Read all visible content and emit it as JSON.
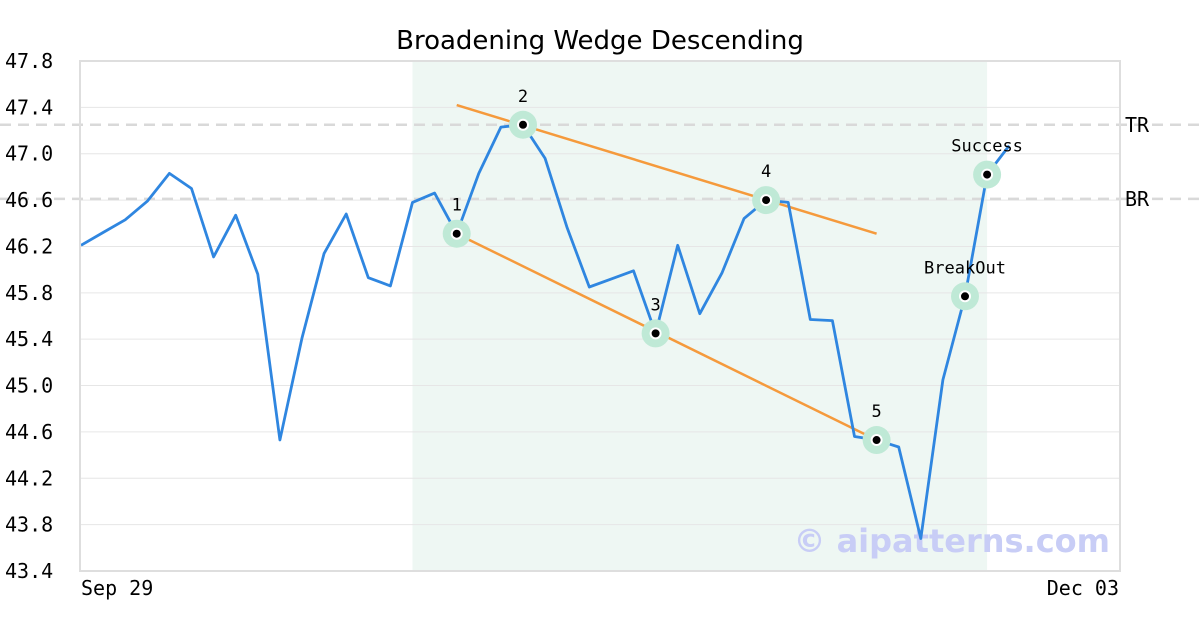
{
  "chart_data": {
    "type": "line",
    "title": "Broadening Wedge Descending",
    "ylim": [
      43.4,
      47.8
    ],
    "y_ticks": [
      "47.8",
      "47.4",
      "47.0",
      "46.6",
      "46.2",
      "45.8",
      "45.4",
      "45.0",
      "44.6",
      "44.2",
      "43.8",
      "43.4"
    ],
    "x_ticks": [
      "Sep 29",
      "Dec 03"
    ],
    "grid": true,
    "colors": {
      "price": "#2f86e0",
      "trendline": "#f59a3c",
      "highlight": "#eef7f3",
      "marker_halo": "#bfe9d6",
      "reference": "#d9d9d9",
      "watermark": "#c8cdf6"
    },
    "series": [
      {
        "values": [
          46.21,
          46.32,
          46.43,
          46.59,
          46.83,
          46.7,
          46.11,
          46.47,
          45.96,
          44.53,
          45.41,
          46.14,
          46.48,
          45.93,
          45.86,
          46.58,
          46.66,
          46.31,
          46.83,
          47.23,
          47.25,
          46.96,
          46.36,
          45.85,
          45.92,
          45.99,
          45.45,
          46.21,
          45.62,
          45.97,
          46.44,
          46.6,
          46.58,
          45.57,
          45.56,
          44.56,
          44.53,
          44.47,
          43.68,
          45.05,
          45.77,
          46.82,
          47.07
        ]
      }
    ],
    "highlight_range": {
      "start_index": 15,
      "end_index": 41
    },
    "trendlines": [
      {
        "name": "upper",
        "points": [
          [
            17,
            47.42
          ],
          [
            36,
            46.31
          ]
        ]
      },
      {
        "name": "lower",
        "points": [
          [
            17,
            46.31
          ],
          [
            36,
            44.53
          ]
        ]
      }
    ],
    "reference_lines": [
      {
        "label": "TR",
        "value": 47.25
      },
      {
        "label": "BR",
        "value": 46.61
      }
    ],
    "points": [
      {
        "label": "1",
        "index": 17,
        "value": 46.31,
        "label_pos": "above"
      },
      {
        "label": "2",
        "index": 20,
        "value": 47.25,
        "label_pos": "above"
      },
      {
        "label": "3",
        "index": 26,
        "value": 45.45,
        "label_pos": "above"
      },
      {
        "label": "4",
        "index": 31,
        "value": 46.6,
        "label_pos": "above"
      },
      {
        "label": "5",
        "index": 36,
        "value": 44.53,
        "label_pos": "above"
      },
      {
        "label": "BreakOut",
        "index": 40,
        "value": 45.77,
        "label_pos": "above"
      },
      {
        "label": "Success",
        "index": 41,
        "value": 46.82,
        "label_pos": "above"
      }
    ],
    "watermark": "© aipatterns.com"
  }
}
